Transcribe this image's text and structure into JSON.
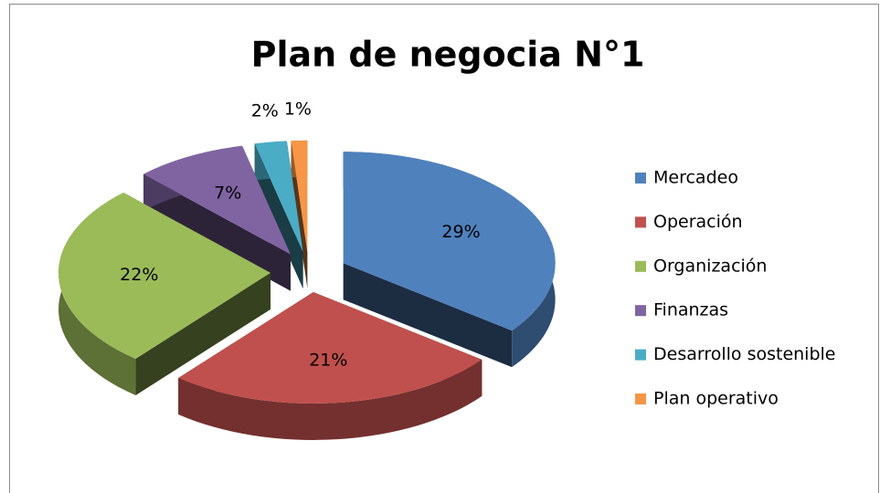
{
  "chart_data": {
    "type": "pie",
    "title": "Plan de negocia N°1",
    "categories": [
      "Mercadeo",
      "Operación",
      "Organización",
      "Finanzas",
      "Desarrollo sostenible",
      "Plan operativo"
    ],
    "values": [
      29,
      21,
      22,
      7,
      2,
      1
    ],
    "value_labels": [
      "29%",
      "21%",
      "22%",
      "7%",
      "2%",
      "1%"
    ],
    "colors": [
      "#4f81bd",
      "#c0504d",
      "#9bbb59",
      "#8064a2",
      "#4bacc6",
      "#f79646"
    ],
    "legend": "right"
  }
}
